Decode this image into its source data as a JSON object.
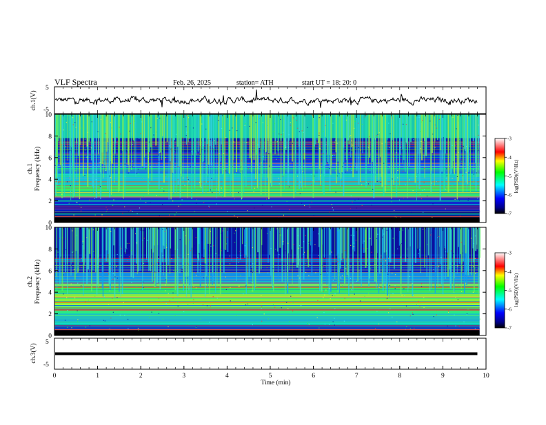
{
  "header": {
    "title": "VLF  Spectra",
    "date": "Feb. 26, 2025",
    "station": "station= ATH",
    "start": "start  UT  =   18: 20: 0"
  },
  "chart_data": [
    {
      "type": "line",
      "name": "ch1-waveform",
      "ylabel": "ch.1(V)",
      "ylim": [
        -5,
        5
      ],
      "yticks": [
        "5",
        "-5"
      ],
      "x_range_min": [
        0,
        9.8
      ],
      "level_approx": 0
    },
    {
      "type": "heatmap",
      "name": "ch1-spectrogram",
      "ylabel": "ch.1\nFrequency  (kHz)",
      "ylabel_line1": "ch.1",
      "ylabel_line2": "Frequency  (kHz)",
      "ylim": [
        0,
        10
      ],
      "yticks": [
        "0",
        "2",
        "4",
        "6",
        "8",
        "10"
      ],
      "xlim": [
        0,
        10
      ],
      "colorbar": {
        "label": "log(PSD)(V²/Hz)",
        "range": [
          -7,
          -3
        ],
        "ticks": [
          "-3",
          "-4",
          "-5",
          "-6",
          "-7"
        ],
        "colors": [
          "#000000",
          "#0000ff",
          "#00ffff",
          "#00ff00",
          "#ffff00",
          "#ff0000",
          "#ffffff"
        ]
      }
    },
    {
      "type": "heatmap",
      "name": "ch2-spectrogram",
      "ylabel": "ch.2\nFrequency  (kHz)",
      "ylabel_line1": "ch.2",
      "ylabel_line2": "Frequency  (kHz)",
      "ylim": [
        0,
        10
      ],
      "yticks": [
        "0",
        "2",
        "4",
        "6",
        "8",
        "10"
      ],
      "xlim": [
        0,
        10
      ],
      "colorbar": {
        "label": "log(PSD)(V²/Hz)",
        "range": [
          -7,
          -3
        ],
        "ticks": [
          "-3",
          "-4",
          "-5",
          "-6",
          "-7"
        ],
        "colors": [
          "#000000",
          "#0000ff",
          "#00ffff",
          "#00ff00",
          "#ffff00",
          "#ff0000",
          "#ffffff"
        ]
      }
    },
    {
      "type": "line",
      "name": "ch3-waveform",
      "ylabel": "ch.3(V)",
      "ylim": [
        -5,
        5
      ],
      "yticks": [
        "5",
        "-5"
      ],
      "x_range_min": [
        0,
        9.8
      ],
      "level_approx": 0
    }
  ],
  "xaxis": {
    "label": "Time  (min)",
    "range": [
      0,
      10
    ],
    "ticks": [
      "0",
      "1",
      "2",
      "3",
      "4",
      "5",
      "6",
      "7",
      "8",
      "9",
      "10"
    ]
  }
}
